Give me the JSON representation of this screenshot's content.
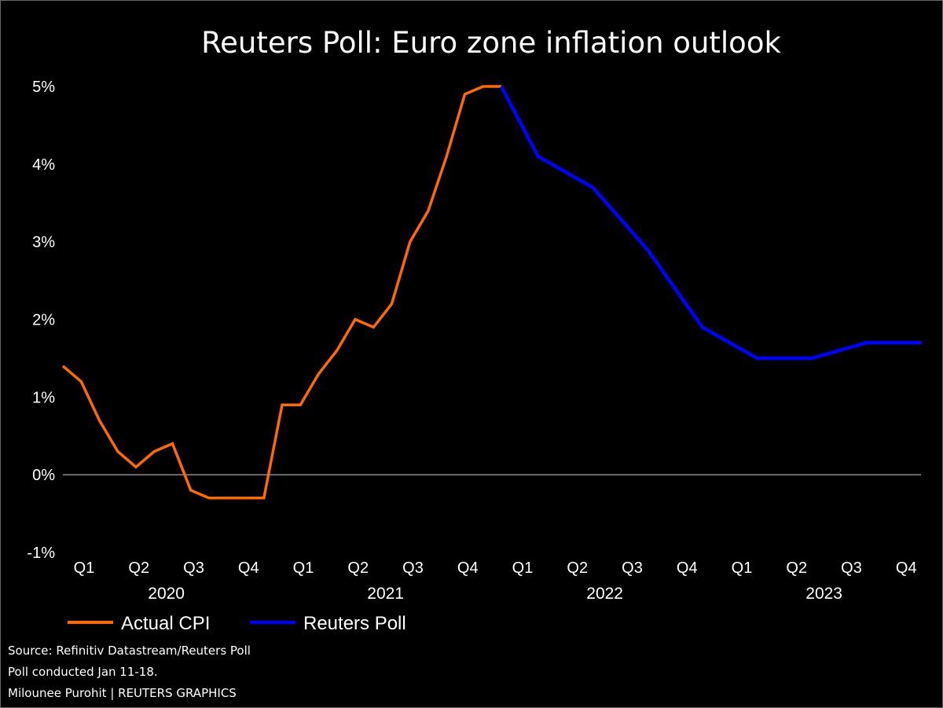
{
  "chart_data": {
    "type": "line",
    "title": "Reuters Poll: Euro zone inflation outlook",
    "xlabel": "",
    "ylabel": "",
    "ylim": [
      -1,
      5
    ],
    "y_ticks": [
      "-1%",
      "0%",
      "1%",
      "2%",
      "3%",
      "4%",
      "5%"
    ],
    "y_tick_values": [
      -1,
      0,
      1,
      2,
      3,
      4,
      5
    ],
    "x_quarter_labels": [
      "Q1",
      "Q2",
      "Q3",
      "Q4",
      "Q1",
      "Q2",
      "Q3",
      "Q4",
      "Q1",
      "Q2",
      "Q3",
      "Q4",
      "Q1",
      "Q2",
      "Q3",
      "Q4"
    ],
    "x_year_labels": [
      "2020",
      "2021",
      "2022",
      "2023"
    ],
    "grid": false,
    "zero_line": true,
    "legend_position": "bottom-left",
    "series": [
      {
        "name": "Actual CPI",
        "color": "#FF6A00",
        "x": [
          "2020-01",
          "2020-02",
          "2020-03",
          "2020-04",
          "2020-05",
          "2020-06",
          "2020-07",
          "2020-08",
          "2020-09",
          "2020-10",
          "2020-11",
          "2020-12",
          "2021-01",
          "2021-02",
          "2021-03",
          "2021-04",
          "2021-05",
          "2021-06",
          "2021-07",
          "2021-08",
          "2021-09",
          "2021-10",
          "2021-11",
          "2021-12",
          "2022-01"
        ],
        "values": [
          1.4,
          1.2,
          0.7,
          0.3,
          0.1,
          0.3,
          0.4,
          -0.2,
          -0.3,
          -0.3,
          -0.3,
          -0.3,
          0.9,
          0.9,
          1.3,
          1.6,
          2.0,
          1.9,
          2.2,
          3.0,
          3.4,
          4.1,
          4.9,
          5.0,
          5.0
        ]
      },
      {
        "name": "Reuters Poll",
        "color": "#0000FF",
        "x": [
          "2022-01",
          "2022-Q1",
          "2022-Q2",
          "2022-Q3",
          "2022-Q4",
          "2023-Q1",
          "2023-Q2",
          "2023-Q3",
          "2023-Q4"
        ],
        "values": [
          5.0,
          4.1,
          3.7,
          2.9,
          1.9,
          1.5,
          1.5,
          1.7,
          1.7
        ]
      }
    ]
  },
  "footer": {
    "source": "Source: Refinitiv Datastream/Reuters Poll",
    "note": "Poll conducted Jan 11-18.",
    "credit": "Milounee Purohit | REUTERS GRAPHICS"
  }
}
